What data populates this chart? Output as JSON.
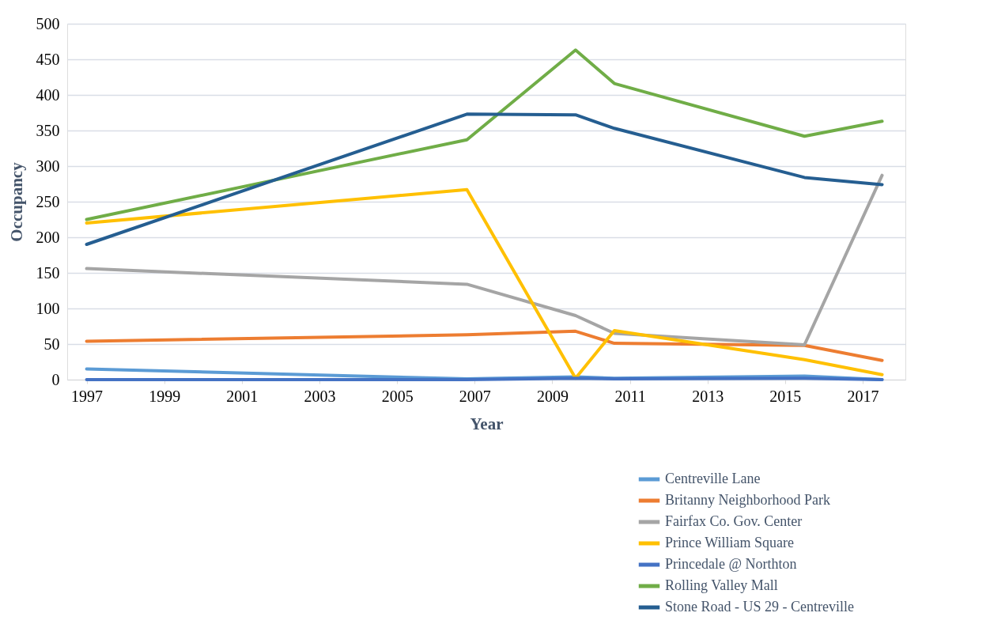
{
  "chart_data": {
    "type": "line",
    "xlabel": "Year",
    "ylabel": "Occupancy",
    "xlim": [
      1996.5,
      2018.1
    ],
    "xticks": [
      1997,
      1999,
      2001,
      2003,
      2005,
      2007,
      2009,
      2011,
      2013,
      2015,
      2017
    ],
    "ylim": [
      0,
      500
    ],
    "yticks": [
      0,
      50,
      100,
      150,
      200,
      250,
      300,
      350,
      400,
      450,
      500
    ],
    "grid": "y",
    "legend": "bottom right",
    "marker": "none",
    "line_style": "solid",
    "x": [
      1997,
      2006.8,
      2009.6,
      2010.6,
      2015.5,
      2017.5
    ],
    "series": [
      {
        "name": "Centreville Lane",
        "color": "#5b9bd5",
        "values": [
          15,
          1,
          4,
          2,
          5,
          0
        ]
      },
      {
        "name": "Britanny Neighborhood Park",
        "color": "#ed7d31",
        "values": [
          54,
          63,
          68,
          51,
          48,
          27
        ]
      },
      {
        "name": "Fairfax Co. Gov. Center",
        "color": "#a5a5a5",
        "values": [
          156,
          134,
          90,
          65,
          49,
          287
        ]
      },
      {
        "name": "Prince William Square",
        "color": "#ffc000",
        "values": [
          220,
          267,
          2,
          69,
          28,
          7
        ]
      },
      {
        "name": "Princedale @ Northton",
        "color": "#4472c4",
        "values": [
          0,
          0,
          2,
          1,
          2,
          0
        ]
      },
      {
        "name": "Rolling Valley Mall",
        "color": "#70ad47",
        "values": [
          225,
          337,
          463,
          416,
          342,
          363
        ]
      },
      {
        "name": "Stone Road - US 29 - Centreville",
        "color": "#255e91",
        "values": [
          190,
          373,
          372,
          353,
          284,
          274
        ]
      }
    ]
  }
}
